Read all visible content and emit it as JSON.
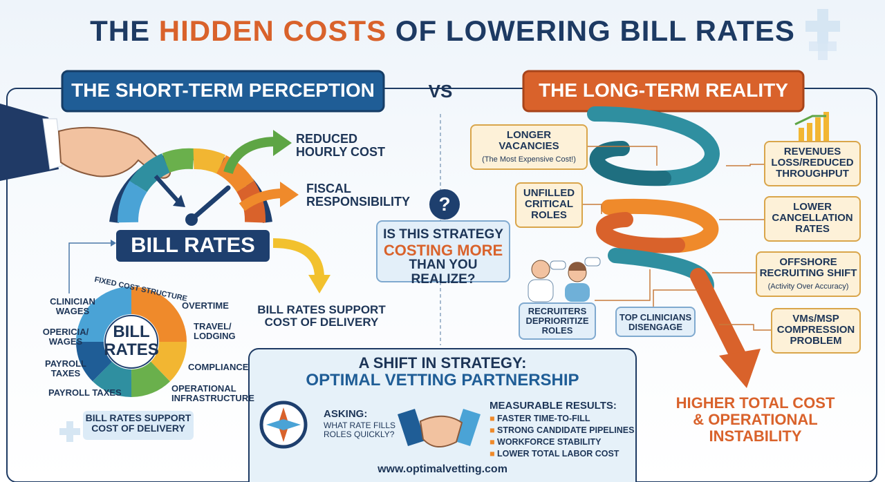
{
  "header": {
    "title": {
      "before": "THE",
      "highlight": "HIDDEN COSTS",
      "after": "OF LOWERING BILL RATES"
    }
  },
  "short_term": {
    "heading": "THE SHORT-TERM PERCEPTION",
    "gauge_label": "BILL RATES",
    "benefits": [
      [
        "REDUCED",
        "HOURLY COST"
      ],
      [
        "FISCAL",
        "RESPONSIBILITY"
      ]
    ],
    "support_note": [
      "BILL RATES SUPPORT",
      "COST OF DELIVERY"
    ],
    "breakdown": {
      "center": [
        "BILL",
        "RATES"
      ],
      "ring_title": "FIXED COST STRUCTURE",
      "labels": [
        [
          "CLINICIAN",
          "WAGES"
        ],
        [
          "OPERICIA/",
          "WAGES"
        ],
        [
          "PAYROLL",
          "TAXES"
        ],
        [
          "PAYROLL TAXES"
        ],
        [
          "OVERTIME"
        ],
        [
          "TRAVEL/",
          "LODGING"
        ],
        [
          "COMPLIANCE"
        ],
        [
          "OPERATIONAL",
          "INFRASTRUCTURE"
        ]
      ],
      "caption": [
        "BILL RATES SUPPORT",
        "COST OF DELIVERY"
      ]
    }
  },
  "versus": "VS",
  "question": {
    "icon": "?",
    "lines": [
      "IS THIS STRATEGY",
      "COSTING MORE",
      "THAN YOU REALIZE?"
    ]
  },
  "long_term": {
    "heading": "THE LONG-TERM REALITY",
    "causes": [
      {
        "lines": [
          "LONGER",
          "VACANCIES"
        ],
        "note": "(The Most Expensive Cost!)"
      },
      {
        "lines": [
          "UNFILLED",
          "CRITICAL",
          "ROLES"
        ]
      },
      {
        "lines": [
          "RECRUITERS",
          "DEPRIORITIZE",
          "ROLES"
        ]
      },
      {
        "lines": [
          "TOP CLINICIANS",
          "DISENGAGE"
        ]
      }
    ],
    "effects": [
      {
        "lines": [
          "REVENUES",
          "LOSS/REDUCED",
          "THROUGHPUT"
        ]
      },
      {
        "lines": [
          "LOWER",
          "CANCELLATION",
          "RATES"
        ]
      },
      {
        "lines": [
          "OFFSHORE",
          "RECRUITING SHIFT"
        ],
        "note": "(Activity Over Accuracy)"
      },
      {
        "lines": [
          "VMs/MSP",
          "COMPRESSION",
          "PROBLEM"
        ]
      }
    ],
    "conclusion": [
      "HIGHER TOTAL COST",
      "& OPERATIONAL",
      "INSTABILITY"
    ]
  },
  "strategy": {
    "title": [
      "A SHIFT IN STRATEGY:",
      "OPTIMAL VETTING PARTNERSHIP"
    ],
    "asking": {
      "label": "ASKING:",
      "lines": [
        "WHAT RATE FILLS",
        "ROLES QUICKLY?"
      ]
    },
    "results": {
      "label": "MEASURABLE RESULTS:",
      "items": [
        "FASTER TIME-TO-FILL",
        "STRONG CANDIDATE PIPELINES",
        "WORKFORCE STABILITY",
        "LOWER TOTAL LABOR COST"
      ]
    },
    "url": "www.optimalvetting.com"
  }
}
